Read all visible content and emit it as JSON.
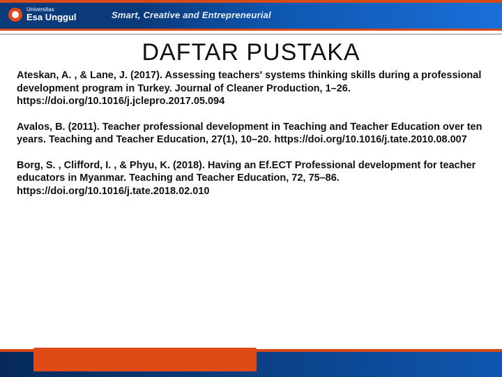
{
  "header": {
    "logo_top": "Universitas",
    "logo_main": "Esa Unggul",
    "tagline": "Smart, Creative and Entrepreneurial",
    "background_gradient": [
      "#0b3a7a",
      "#1a6fd8"
    ],
    "accent_color": "#d84a17"
  },
  "title": "DAFTAR PUSTAKA",
  "references": [
    "Ateskan, A. , & Lane, J. (2017). Assessing teachers' systems thinking skills during a professional development program in Turkey. Journal of Cleaner Production, 1–26. https://doi.org/10.1016/j.jclepro.2017.05.094",
    "Avalos, B. (2011). Teacher professional development in Teaching and Teacher Education over ten years. Teaching and Teacher Education, 27(1), 10–20. https://doi.org/10.1016/j.tate.2010.08.007",
    "Borg, S. , Clifford, I. , & Phyu, K. (2018). Having an Ef.ECT Professional development for teacher educators in Myanmar. Teaching and Teacher Education, 72, 75–86. https://doi.org/10.1016/j.tate.2018.02.010"
  ],
  "colors": {
    "text": "#111111",
    "background": "#ffffff",
    "separator": "#bfbfbf"
  }
}
